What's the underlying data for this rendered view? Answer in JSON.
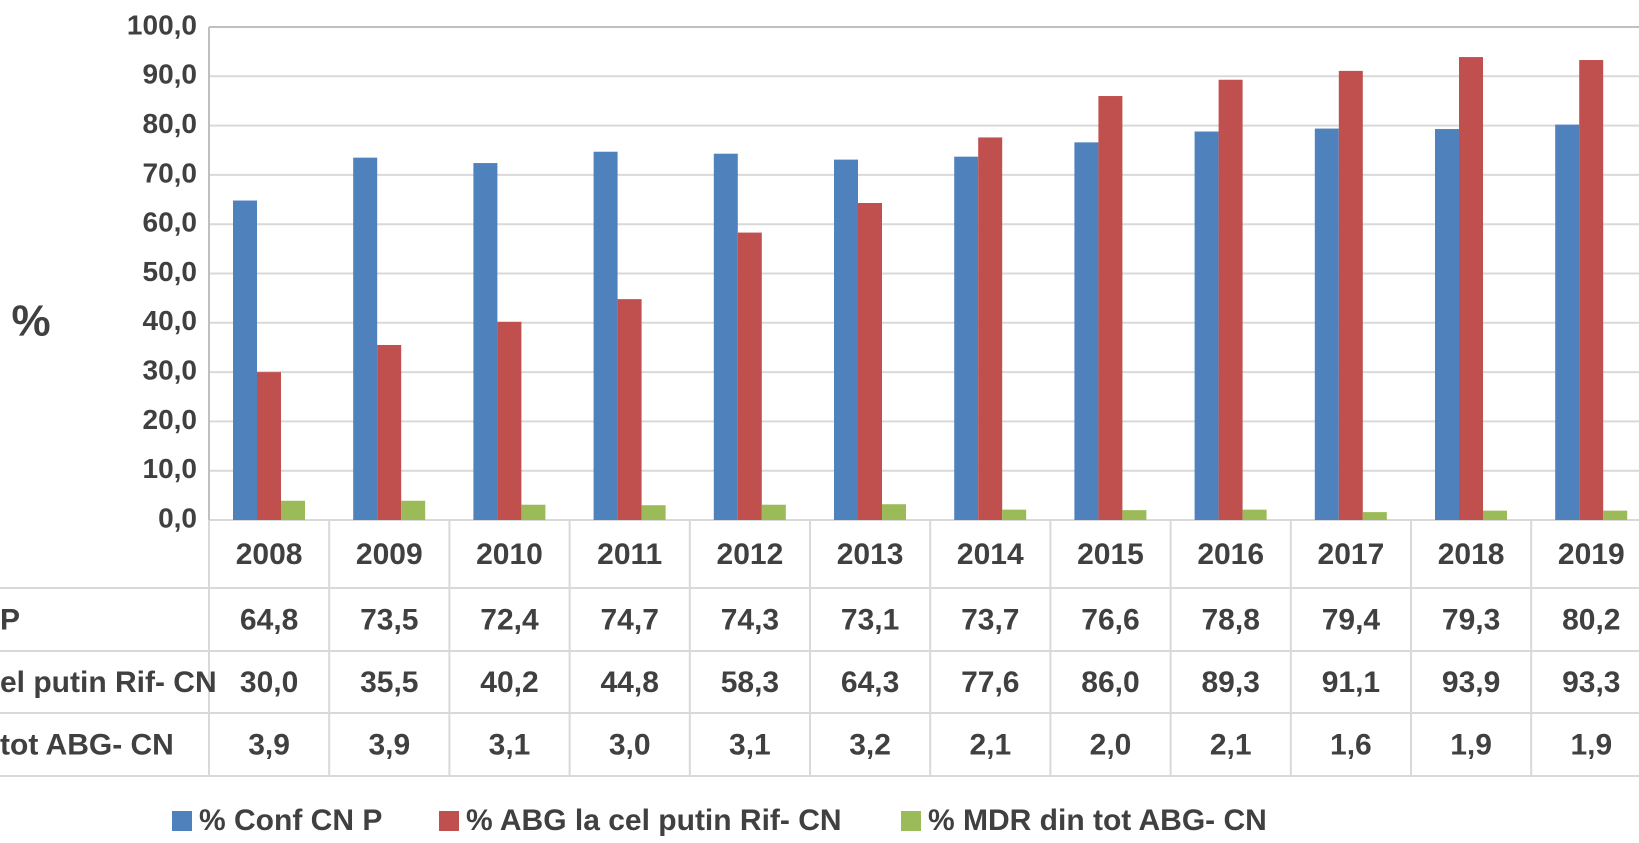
{
  "chart_data": {
    "type": "bar",
    "y_label": "%",
    "categories": [
      "2008",
      "2009",
      "2010",
      "2011",
      "2012",
      "2013",
      "2014",
      "2015",
      "2016",
      "2017",
      "2018",
      "2019"
    ],
    "series": [
      {
        "name": "% Conf CN P",
        "color": "#4f81bd",
        "values": [
          64.8,
          73.5,
          72.4,
          74.7,
          74.3,
          73.1,
          73.7,
          76.6,
          78.8,
          79.4,
          79.3,
          80.2
        ],
        "value_labels": [
          "64,8",
          "73,5",
          "72,4",
          "74,7",
          "74,3",
          "73,1",
          "73,7",
          "76,6",
          "78,8",
          "79,4",
          "79,3",
          "80,2"
        ]
      },
      {
        "name": "% ABG la cel putin Rif- CN",
        "color": "#c0504d",
        "values": [
          30.0,
          35.5,
          40.2,
          44.8,
          58.3,
          64.3,
          77.6,
          86.0,
          89.3,
          91.1,
          93.9,
          93.3
        ],
        "value_labels": [
          "30,0",
          "35,5",
          "40,2",
          "44,8",
          "58,3",
          "64,3",
          "77,6",
          "86,0",
          "89,3",
          "91,1",
          "93,9",
          "93,3"
        ]
      },
      {
        "name": "% MDR din tot ABG- CN",
        "color": "#9bbb59",
        "values": [
          3.9,
          3.9,
          3.1,
          3.0,
          3.1,
          3.2,
          2.1,
          2.0,
          2.1,
          1.6,
          1.9,
          1.9
        ],
        "value_labels": [
          "3,9",
          "3,9",
          "3,1",
          "3,0",
          "3,1",
          "3,2",
          "2,1",
          "2,0",
          "2,1",
          "1,6",
          "1,9",
          "1,9"
        ]
      }
    ],
    "table_row_labels": [
      "P",
      "el putin Rif- CN",
      "tot ABG- CN"
    ],
    "ylim": [
      0,
      100
    ],
    "yticks": [
      {
        "value": 0,
        "label": "0,0"
      },
      {
        "value": 10,
        "label": "10,0"
      },
      {
        "value": 20,
        "label": "20,0"
      },
      {
        "value": 30,
        "label": "30,0"
      },
      {
        "value": 40,
        "label": "40,0"
      },
      {
        "value": 50,
        "label": "50,0"
      },
      {
        "value": 60,
        "label": "60,0"
      },
      {
        "value": 70,
        "label": "70,0"
      },
      {
        "value": 80,
        "label": "80,0"
      },
      {
        "value": 90,
        "label": "90,0"
      },
      {
        "value": 100,
        "label": "100,0"
      }
    ],
    "grid": true
  }
}
